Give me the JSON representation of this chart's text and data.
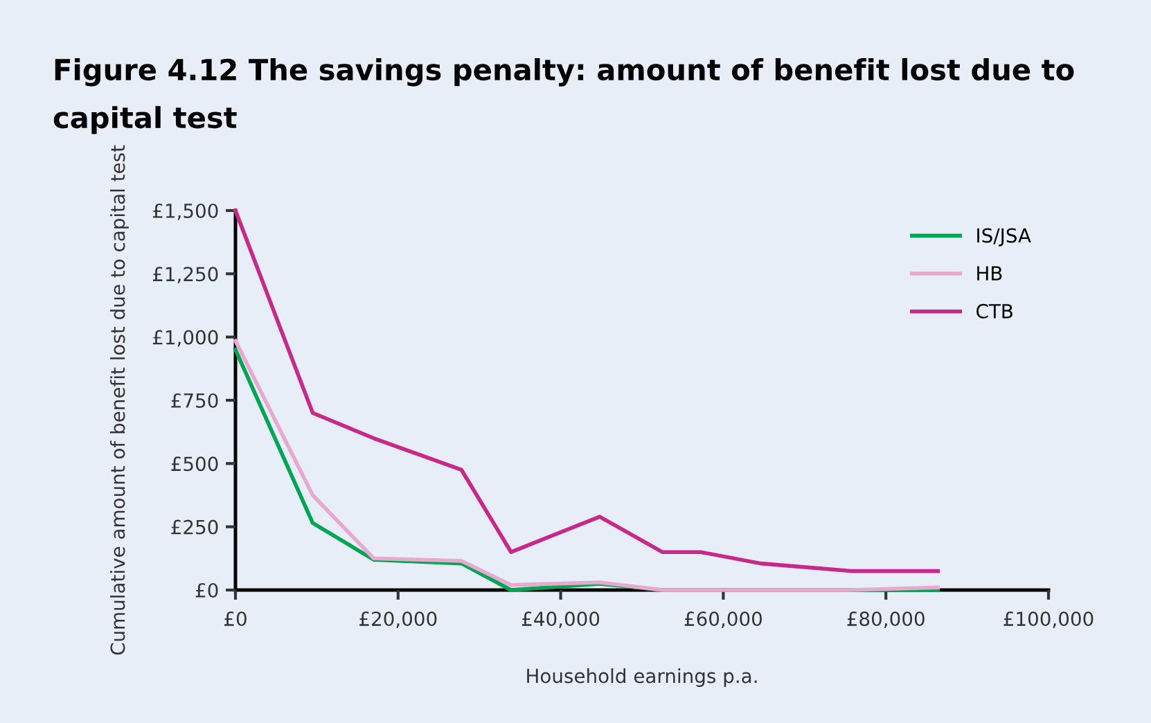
{
  "chart_data": {
    "type": "line",
    "title": "Figure 4.12 The savings penalty: amount of benefit lost due to capital test",
    "xlabel": "Household earnings p.a.",
    "ylabel": "Cumulative amount of benefit lost due to capital test",
    "x": [
      0,
      9500,
      17000,
      27800,
      33900,
      44800,
      52500,
      57200,
      64600,
      75700,
      86400
    ],
    "series": [
      {
        "name": "IS/JSA",
        "color": "#00a651",
        "values": [
          950,
          265,
          120,
          105,
          0,
          25,
          0,
          null,
          null,
          0,
          0
        ]
      },
      {
        "name": "HB",
        "color": "#e8a8cf",
        "values": [
          985,
          375,
          125,
          115,
          20,
          30,
          0,
          0,
          0,
          0,
          10
        ]
      },
      {
        "name": "CTB",
        "color": "#c7288a",
        "values": [
          1500,
          700,
          600,
          475,
          150,
          290,
          150,
          150,
          105,
          75,
          75
        ]
      }
    ],
    "xlim": [
      0,
      100000
    ],
    "xticks": [
      {
        "value": 0,
        "label": "£0"
      },
      {
        "value": 20000,
        "label": "£20,000"
      },
      {
        "value": 40000,
        "label": "£40,000"
      },
      {
        "value": 60000,
        "label": "£60,000"
      },
      {
        "value": 80000,
        "label": "£80,000"
      },
      {
        "value": 100000,
        "label": "£100,000"
      }
    ],
    "ylim": [
      0,
      1500
    ],
    "yticks": [
      {
        "value": 0,
        "label": "£0"
      },
      {
        "value": 250,
        "label": "£250"
      },
      {
        "value": 500,
        "label": "£500"
      },
      {
        "value": 750,
        "label": "£750"
      },
      {
        "value": 1000,
        "label": "£1,000"
      },
      {
        "value": 1250,
        "label": "£1,250"
      },
      {
        "value": 1500,
        "label": "£1,500"
      }
    ],
    "grid": false,
    "legend": "top right"
  }
}
